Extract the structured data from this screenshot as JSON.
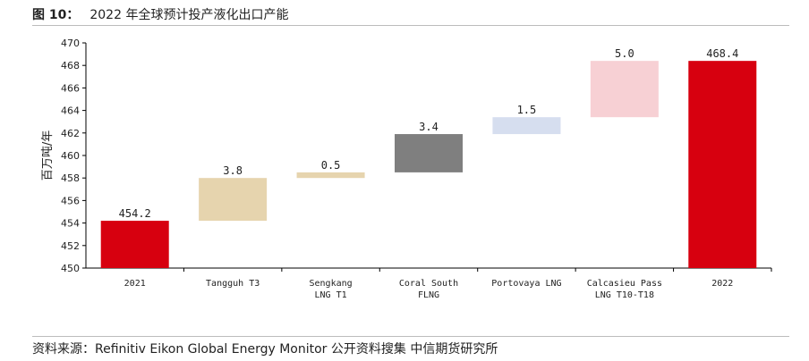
{
  "figure": {
    "number": "图 10：",
    "title": "2022 年全球预计投产液化出口产能",
    "source": "资料来源：Refinitiv Eikon  Global Energy Monitor  公开资料搜集  中信期货研究所"
  },
  "chart_data": {
    "type": "bar",
    "ylabel": "百万吨/年",
    "ylim": [
      450,
      470
    ],
    "yticks": [
      "470",
      "468",
      "466",
      "464",
      "462",
      "460",
      "458",
      "456",
      "454",
      "452",
      "450"
    ],
    "grid": false,
    "categories": [
      [
        "2021"
      ],
      [
        "Tangguh T3"
      ],
      [
        "Sengkang",
        "LNG T1"
      ],
      [
        "Coral South",
        "FLNG"
      ],
      [
        "Portovaya LNG"
      ],
      [
        "Calcasieu Pass",
        "LNG T10-T18"
      ],
      [
        "2022"
      ]
    ],
    "bars": [
      {
        "base": 450,
        "top": 454.2,
        "label": "454.2",
        "color": "#d7000f"
      },
      {
        "base": 454.2,
        "top": 458.0,
        "label": "3.8",
        "color": "#e6d4ae"
      },
      {
        "base": 458.0,
        "top": 458.5,
        "label": "0.5",
        "color": "#e6d4ae"
      },
      {
        "base": 458.5,
        "top": 461.9,
        "label": "3.4",
        "color": "#7f7f7f"
      },
      {
        "base": 461.9,
        "top": 463.4,
        "label": "1.5",
        "color": "#d6deef"
      },
      {
        "base": 463.4,
        "top": 468.4,
        "label": "5.0",
        "color": "#f7d0d4"
      },
      {
        "base": 450,
        "top": 468.4,
        "label": "468.4",
        "color": "#d7000f"
      }
    ]
  }
}
